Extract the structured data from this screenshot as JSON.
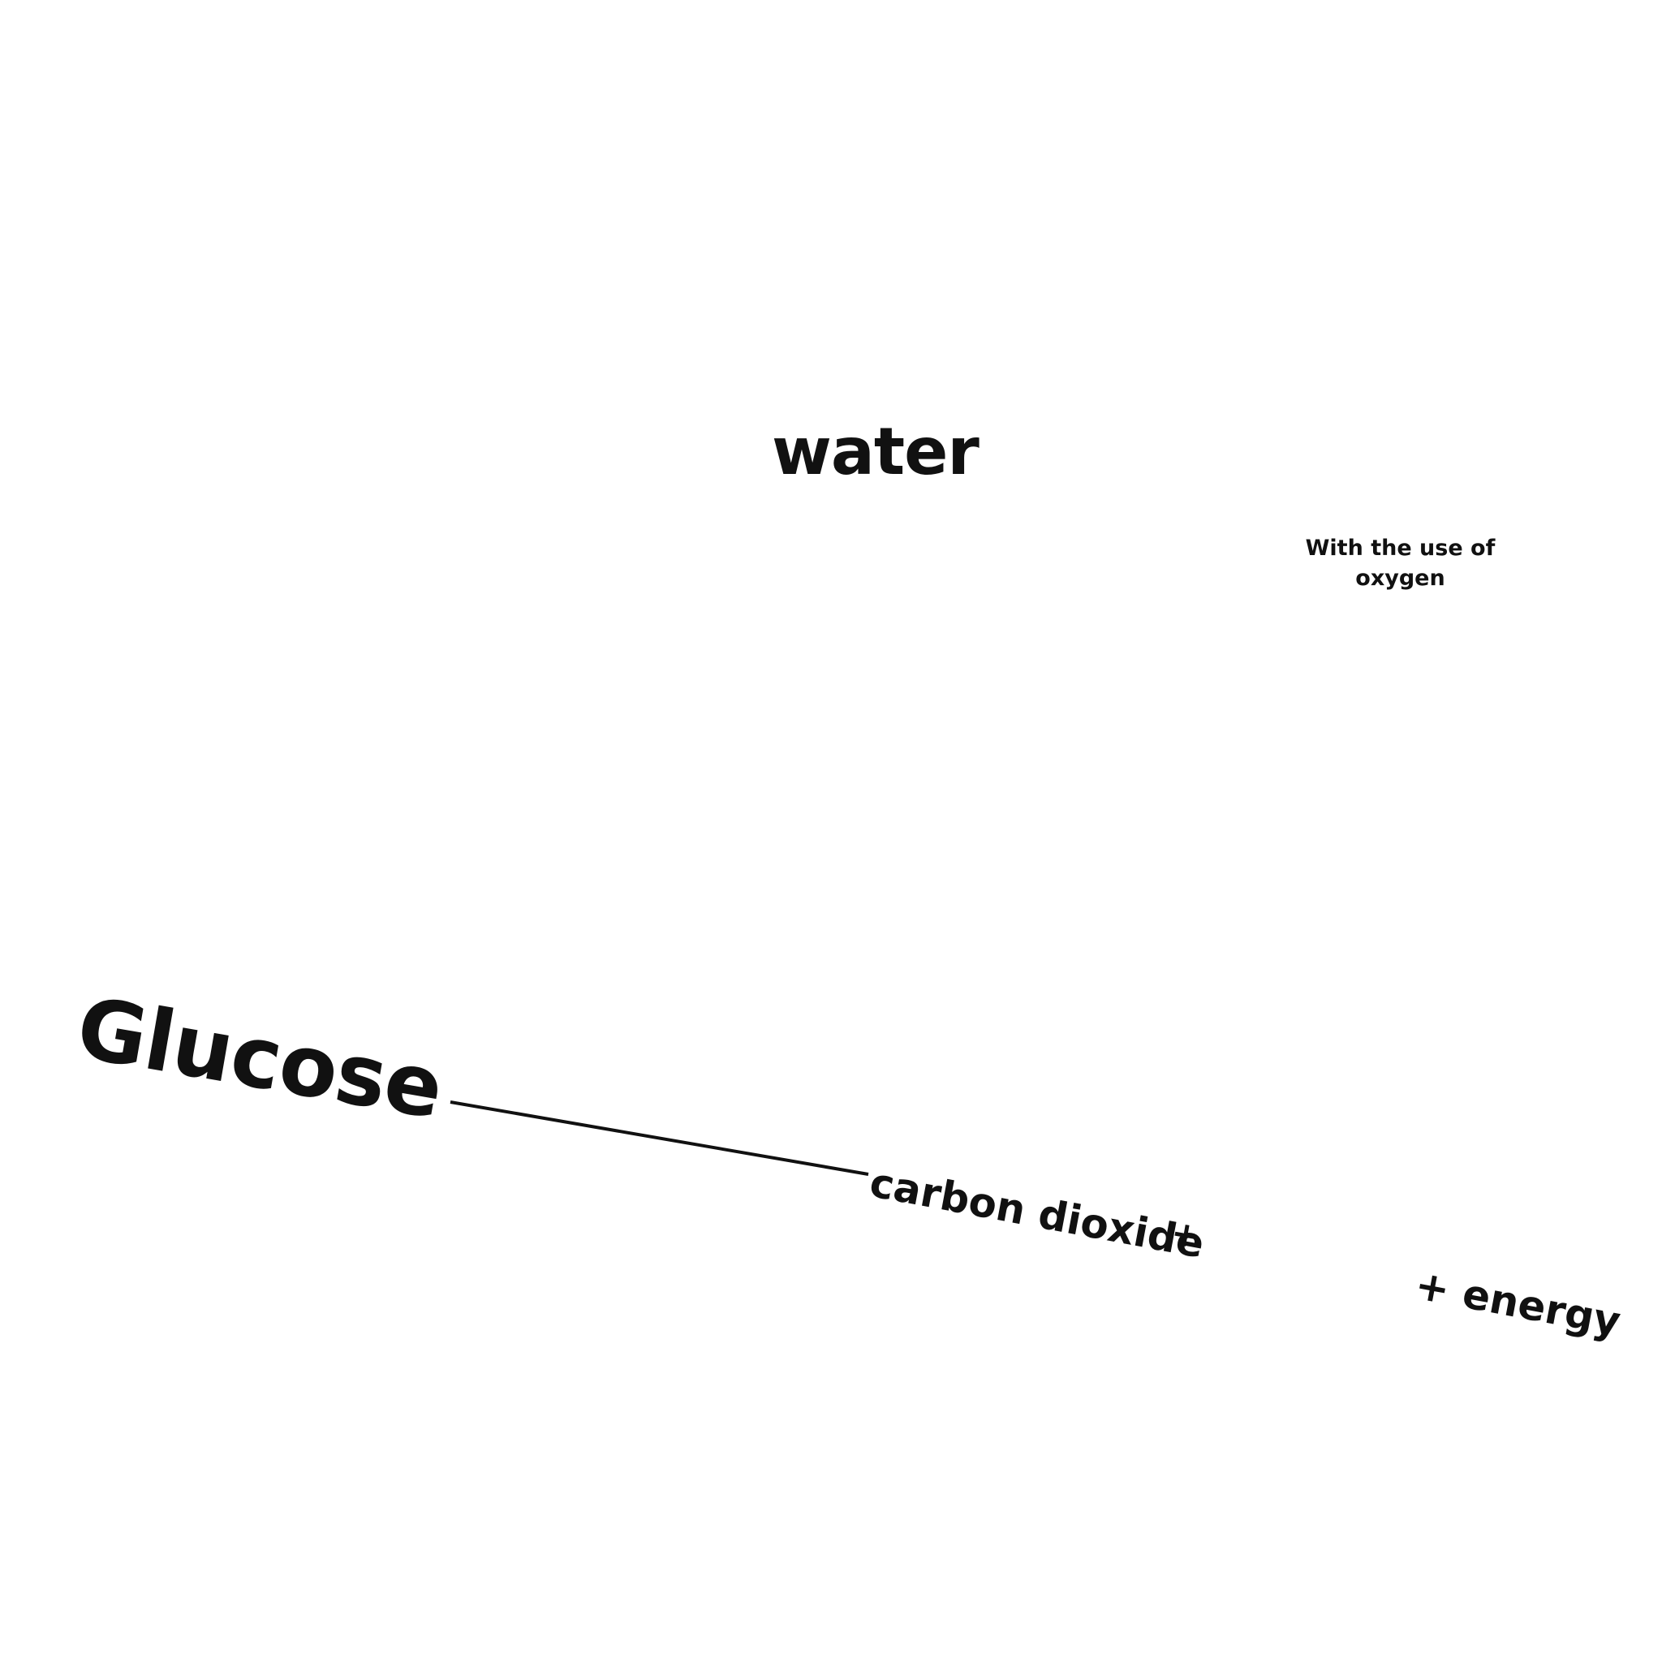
{
  "diagram": {
    "water_label": "water",
    "oxygen_note": "With the use of oxygen",
    "glucose_label": "Glucose",
    "carbon_dioxide_label": "carbon dioxide",
    "plus_sign": "+",
    "energy_label": "+ energy",
    "connector_color": "#111111"
  }
}
